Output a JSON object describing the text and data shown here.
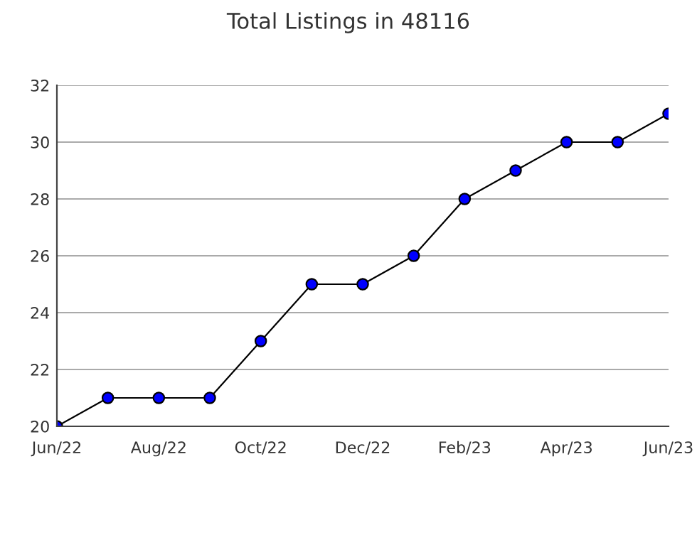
{
  "chart_data": {
    "type": "line",
    "title": "Total Listings in 48116",
    "categories": [
      "Jun/22",
      null,
      "Aug/22",
      null,
      "Oct/22",
      null,
      "Dec/22",
      null,
      "Feb/23",
      null,
      "Apr/23",
      null,
      "Jun/23"
    ],
    "series": [
      {
        "color": "#0000ff",
        "values": [
          20,
          21,
          21,
          21,
          23,
          25,
          25,
          26,
          28,
          29,
          30,
          30,
          31
        ]
      }
    ],
    "ylim": [
      20,
      32
    ],
    "yticks": [
      20,
      22,
      24,
      26,
      28,
      30,
      32
    ],
    "grid": "y",
    "marker": "circle",
    "line_style": "solid"
  }
}
